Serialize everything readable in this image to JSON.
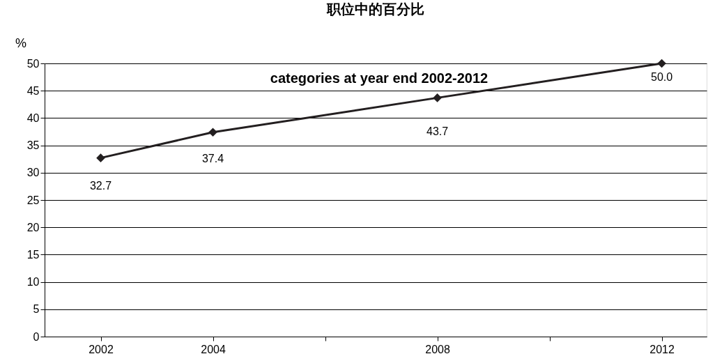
{
  "chart_data": {
    "type": "line",
    "title": "职位中的百分比",
    "subtitle": "categories at year end 2002-2012",
    "ylabel": "%",
    "x": [
      2002,
      2004,
      2008,
      2012
    ],
    "series": [
      {
        "color": "#231f20",
        "values": [
          32.7,
          37.4,
          43.7,
          50.0
        ],
        "value_labels": [
          "32.7",
          "37.4",
          "43.7",
          "50.0"
        ]
      }
    ],
    "xlim": [
      2001,
      2012.8
    ],
    "xticks": [
      2002,
      2004,
      {
        "value": 2006,
        "label": null
      },
      2008,
      {
        "value": 2010,
        "label": null
      },
      2012
    ],
    "ylim": [
      0,
      50
    ],
    "yticks": [
      0,
      5,
      10,
      15,
      20,
      25,
      30,
      35,
      40,
      45,
      50
    ],
    "grid": "y",
    "marker": "diamond",
    "line_style": "solid"
  }
}
